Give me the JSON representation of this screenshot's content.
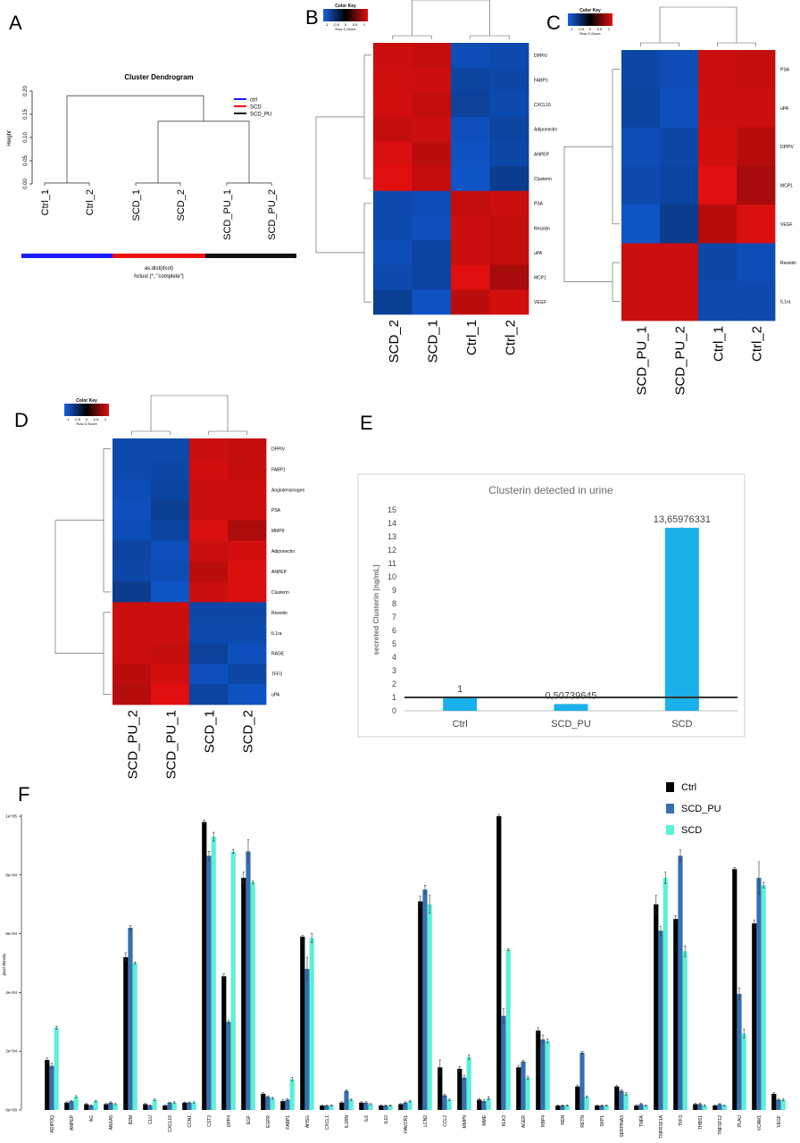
{
  "panels": {
    "A": {
      "letter": "A",
      "title": "Cluster Dendrogram",
      "ylabel": "Height",
      "yticks": [
        "0.20",
        "0.15",
        "0.10",
        "0.05",
        "0.00"
      ],
      "leaves": [
        "Ctrl_1",
        "Ctrl_2",
        "SCD_1",
        "SCD_2",
        "SCD_PU_1",
        "SCD_PU_2"
      ],
      "legend": [
        {
          "label": "ctrl",
          "color": "#1a1aff"
        },
        {
          "label": "SCD",
          "color": "#ee1111"
        },
        {
          "label": "SCD_PU",
          "color": "#111111"
        }
      ],
      "caption1": "as.dist(dcol)",
      "caption2": "hclust (*, \"complete\")",
      "group_colors": [
        "#1a1aff",
        "#ee1111",
        "#111111"
      ]
    },
    "B": {
      "letter": "B",
      "key_title": "Color Key",
      "key_ticks": [
        "-1",
        "-0.5",
        "0",
        "0.5",
        "1"
      ],
      "key_label": "Row Z-Score",
      "columns": [
        "SCD_2",
        "SCD_1",
        "Ctrl_1",
        "Ctrl_2"
      ],
      "rows": [
        "DPPIV",
        "FABP1",
        "CXCL16",
        "Adiponectin",
        "ANPEP",
        "Clusterin",
        "PSA",
        "Resistin",
        "uPA",
        "MCP1",
        "VEGF"
      ],
      "values": [
        [
          0.85,
          0.8,
          -0.85,
          -0.8
        ],
        [
          0.88,
          0.85,
          -0.7,
          -0.75
        ],
        [
          0.9,
          0.8,
          -0.65,
          -0.8
        ],
        [
          0.8,
          0.85,
          -0.9,
          -0.7
        ],
        [
          0.95,
          0.75,
          -0.95,
          -0.75
        ],
        [
          1.0,
          0.8,
          -1.0,
          -0.55
        ],
        [
          -0.8,
          -0.85,
          0.8,
          0.85
        ],
        [
          -0.8,
          -0.9,
          0.85,
          0.8
        ],
        [
          -0.85,
          -0.7,
          0.85,
          0.8
        ],
        [
          -0.8,
          -0.7,
          1.0,
          0.6
        ],
        [
          -0.6,
          -0.95,
          0.75,
          0.9
        ]
      ]
    },
    "C": {
      "letter": "C",
      "key_title": "Color Key",
      "key_ticks": [
        "-1",
        "-0.5",
        "0",
        "0.5",
        "1"
      ],
      "key_label": "Row Z-Score",
      "columns": [
        "SCD_PU_1",
        "SCD_PU_2",
        "Ctrl_1",
        "Ctrl_2"
      ],
      "rows": [
        "PSA",
        "uPA",
        "DPPIV",
        "MCP1",
        "VEGF",
        "Resistin",
        "IL1ra"
      ],
      "values": [
        [
          -0.75,
          -0.85,
          0.85,
          0.8
        ],
        [
          -0.7,
          -0.9,
          0.85,
          0.85
        ],
        [
          -0.85,
          -0.75,
          0.9,
          0.7
        ],
        [
          -0.8,
          -0.7,
          1.0,
          0.6
        ],
        [
          -1.0,
          -0.55,
          0.7,
          0.95
        ],
        [
          0.85,
          0.85,
          -0.75,
          -0.85
        ],
        [
          0.85,
          0.85,
          -0.8,
          -0.8
        ]
      ]
    },
    "D": {
      "letter": "D",
      "key_title": "Color Key",
      "key_ticks": [
        "-1",
        "-0.5",
        "0",
        "0.5",
        "1"
      ],
      "key_label": "Row Z-Score",
      "columns": [
        "SCD_PU_2",
        "SCD_PU_1",
        "SCD_1",
        "SCD_2"
      ],
      "rows": [
        "DPPIV",
        "FABP1",
        "Angiotensinogen",
        "PSA",
        "MMP9",
        "Adiponectin",
        "ANPEP",
        "Clusterin",
        "Resistin",
        "IL1ra",
        "RAGE",
        "TFF3",
        "uPA"
      ],
      "values": [
        [
          -0.8,
          -0.8,
          0.85,
          0.8
        ],
        [
          -0.8,
          -0.75,
          0.9,
          0.8
        ],
        [
          -0.85,
          -0.7,
          0.85,
          0.85
        ],
        [
          -0.9,
          -0.6,
          0.85,
          0.85
        ],
        [
          -0.85,
          -0.7,
          0.95,
          0.65
        ],
        [
          -0.7,
          -0.9,
          0.85,
          0.9
        ],
        [
          -0.75,
          -0.85,
          0.75,
          0.95
        ],
        [
          -0.55,
          -1.0,
          0.85,
          0.95
        ],
        [
          0.85,
          0.85,
          -0.75,
          -0.75
        ],
        [
          0.85,
          0.85,
          -0.8,
          -0.8
        ],
        [
          0.85,
          0.8,
          -0.65,
          -0.9
        ],
        [
          0.75,
          0.9,
          -0.9,
          -0.75
        ],
        [
          0.7,
          1.0,
          -0.7,
          -0.95
        ]
      ]
    },
    "E": {
      "letter": "E"
    },
    "F": {
      "letter": "F"
    }
  },
  "chart_data": [
    {
      "type": "bar",
      "id": "E",
      "title": "Clusterin detected in urine",
      "xlabel": "",
      "ylabel": "secreted Clusterin [ng/mL]",
      "categories": [
        "Ctrl",
        "SCD_PU",
        "SCD"
      ],
      "values": [
        1,
        0.50739645,
        13.65976331
      ],
      "data_labels": [
        "1",
        "0,50739645",
        "13,65976331"
      ],
      "errors": [
        0.02,
        0.02,
        0.05
      ],
      "reference_line": 1,
      "ylim": [
        0,
        15
      ],
      "yticks": [
        "0",
        "1",
        "2",
        "3",
        "4",
        "5",
        "6",
        "7",
        "8",
        "9",
        "10",
        "11",
        "12",
        "13",
        "14",
        "15"
      ],
      "bar_color": "#1ab0ea"
    },
    {
      "type": "bar",
      "id": "F",
      "ylabel": "pixel density",
      "ylim": [
        0,
        100000
      ],
      "yticks": [
        "0e+00",
        "2e+04",
        "4e+04",
        "6e+04",
        "8e+04",
        "1e+05"
      ],
      "categories": [
        "ADIPOQ",
        "ANPEP",
        "AG",
        "ANXA5",
        "B2M",
        "CLU",
        "CXCL16",
        "CCN1",
        "CST3",
        "DPP4",
        "EGF",
        "EGFR",
        "FABP1",
        "AHSG",
        "CXCL1",
        "IL1RN",
        "IL6",
        "IL10",
        "HAVCR1",
        "LCN2",
        "CCL2",
        "MMP9",
        "MME",
        "KLK3",
        "AGER",
        "RBP4",
        "REN",
        "RETN",
        "SKP1",
        "SERPINA3",
        "TNFA",
        "TNFRSF1A",
        "TFF3",
        "THBS1",
        "TNFSF12",
        "PLAU",
        "VCAM1",
        "VEGF"
      ],
      "series": [
        {
          "name": "Ctrl",
          "color": "#000000",
          "values": [
            17000,
            2500,
            2000,
            2000,
            52000,
            2000,
            1500,
            2500,
            98000,
            45500,
            79000,
            5500,
            3000,
            59000,
            1500,
            2500,
            2500,
            1500,
            2000,
            71000,
            14500,
            14000,
            3500,
            100000,
            14500,
            27000,
            1500,
            8000,
            1500,
            8000,
            1500,
            70000,
            65000,
            2000,
            1500,
            82000,
            63500,
            5500
          ]
        },
        {
          "name": "SCD_PU",
          "color": "#3570b0",
          "values": [
            15000,
            3000,
            1500,
            2500,
            62000,
            1500,
            2500,
            2500,
            86500,
            30000,
            88000,
            4500,
            3500,
            48000,
            1500,
            6500,
            2500,
            1500,
            2500,
            75000,
            5000,
            11000,
            3000,
            32000,
            16500,
            24000,
            1500,
            19500,
            1500,
            6500,
            2000,
            61000,
            86500,
            2000,
            2000,
            39500,
            79000,
            3500
          ]
        },
        {
          "name": "SCD",
          "color": "#5cf0d8",
          "values": [
            28000,
            4500,
            3000,
            2000,
            50000,
            3500,
            2500,
            2500,
            93000,
            88000,
            77500,
            4000,
            10500,
            58500,
            1500,
            3500,
            2000,
            1500,
            3000,
            70000,
            3500,
            18000,
            4000,
            54500,
            11000,
            23500,
            1500,
            4500,
            1500,
            5500,
            1500,
            79000,
            54000,
            1500,
            1500,
            26000,
            76500,
            3500
          ]
        }
      ],
      "errors": [
        [
          700,
          300,
          200,
          200,
          1500,
          200,
          200,
          200,
          700,
          800,
          2000,
          500,
          400,
          500,
          200,
          300,
          300,
          200,
          200,
          1800,
          2500,
          800,
          400,
          600,
          700,
          1000,
          200,
          500,
          200,
          400,
          200,
          3000,
          1200,
          200,
          200,
          500,
          1200,
          500
        ],
        [
          900,
          300,
          200,
          300,
          800,
          200,
          200,
          200,
          1500,
          500,
          4000,
          300,
          300,
          4000,
          200,
          400,
          300,
          200,
          300,
          1500,
          400,
          800,
          400,
          2500,
          300,
          1500,
          200,
          400,
          200,
          400,
          300,
          1500,
          2000,
          300,
          200,
          2000,
          5500,
          300
        ],
        [
          500,
          400,
          300,
          200,
          400,
          300,
          300,
          300,
          1500,
          700,
          400,
          300,
          600,
          1500,
          200,
          300,
          200,
          200,
          300,
          3000,
          300,
          800,
          500,
          300,
          500,
          700,
          200,
          300,
          200,
          500,
          200,
          2000,
          1800,
          300,
          200,
          1500,
          1000,
          300
        ]
      ],
      "legend": [
        "Ctrl",
        "SCD_PU",
        "SCD"
      ],
      "legend_position": "top-right"
    }
  ]
}
